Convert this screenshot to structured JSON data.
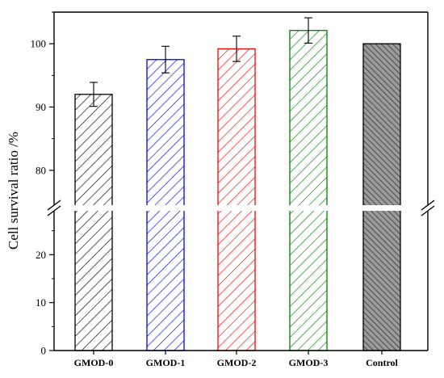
{
  "chart_data": {
    "type": "bar",
    "ylabel": "Cell survival ratio /%",
    "categories": [
      "GMOD-0",
      "GMOD-1",
      "GMOD-2",
      "GMOD-3",
      "Control"
    ],
    "values": [
      92.0,
      97.5,
      99.2,
      102.1,
      100.0
    ],
    "errors": [
      1.9,
      2.1,
      2.0,
      2.0,
      0
    ],
    "colors": [
      "#000000",
      "#0000ff",
      "#ff0000",
      "#008000",
      "#000000"
    ],
    "fills": [
      "hatch-forward",
      "hatch-forward",
      "hatch-forward",
      "hatch-forward",
      "hatch-back-dense-gray"
    ],
    "axis_break": [
      30,
      75
    ],
    "ylim_lower": [
      0,
      30
    ],
    "ylim_upper": [
      75,
      105
    ],
    "yticks_lower": [
      "0",
      "10",
      "20"
    ],
    "yticks_upper": [
      "80",
      "90",
      "100"
    ],
    "ytick_values_lower": [
      0,
      10,
      20
    ],
    "ytick_values_upper": [
      80,
      90,
      100
    ]
  }
}
